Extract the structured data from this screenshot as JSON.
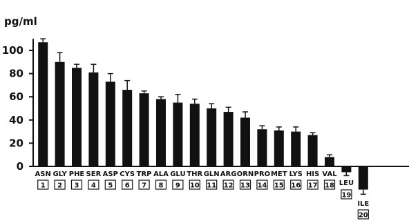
{
  "chart_data": {
    "type": "bar",
    "title": "",
    "xlabel": "",
    "ylabel": "pg/ml",
    "ylim": [
      -30,
      110
    ],
    "yticks": [
      0,
      20,
      40,
      60,
      80,
      100
    ],
    "grid": false,
    "bar_color": "#111111",
    "categories": [
      "ASN",
      "GLY",
      "PHE",
      "SER",
      "ASP",
      "CYS",
      "TRP",
      "ALA",
      "GLU",
      "THR",
      "GLN",
      "ARG",
      "ORN",
      "PRO",
      "MET",
      "LYS",
      "HIS",
      "VAL",
      "LEU",
      "ILE"
    ],
    "numbers": [
      "1",
      "2",
      "3",
      "4",
      "5",
      "6",
      "7",
      "8",
      "9",
      "10",
      "11",
      "12",
      "13",
      "14",
      "15",
      "16",
      "17",
      "18",
      "19",
      "20"
    ],
    "values": [
      107,
      90,
      85,
      81,
      73,
      66,
      63,
      58,
      55,
      54,
      50,
      47,
      42,
      32,
      31,
      30,
      27,
      8,
      -5,
      -20
    ],
    "errors": [
      3,
      8,
      3,
      7,
      7,
      8,
      2,
      2,
      7,
      4,
      4,
      4,
      5,
      3,
      3,
      4,
      2,
      2,
      3,
      4
    ]
  }
}
